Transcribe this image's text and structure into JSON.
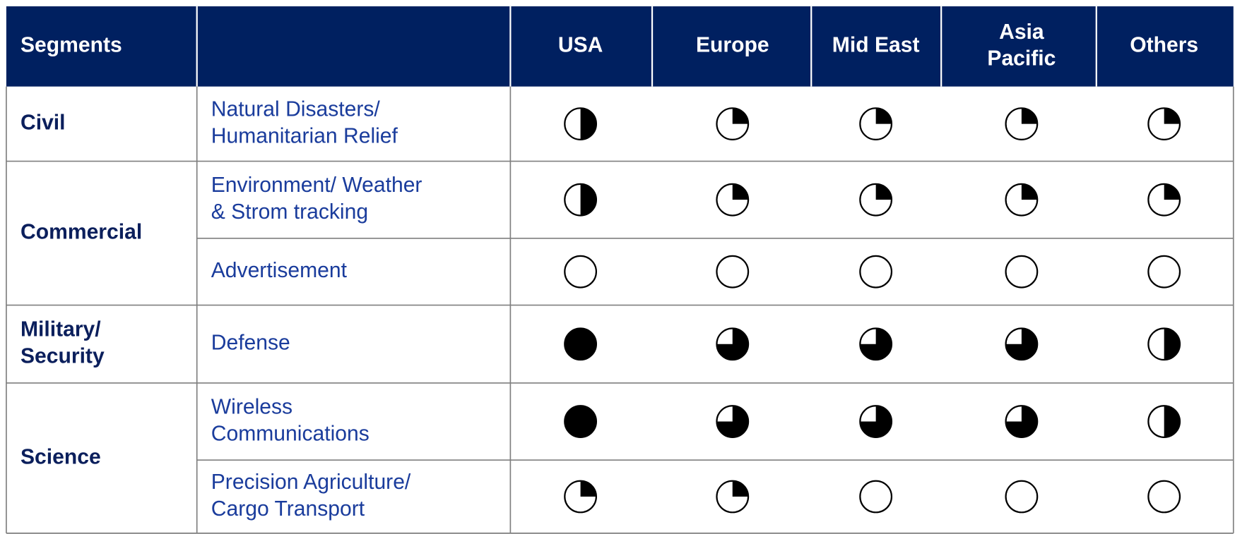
{
  "header": {
    "segments_label": "Segments",
    "regions": [
      [
        "USA"
      ],
      [
        "Europe"
      ],
      [
        "Mid East"
      ],
      [
        "Asia",
        "Pacific"
      ],
      [
        "Others"
      ]
    ]
  },
  "groups": [
    {
      "segment": [
        "Civil"
      ],
      "applications": [
        {
          "label": [
            "Natural Disasters/",
            "Humanitarian Relief"
          ],
          "ratings": [
            0.5,
            0.25,
            0.25,
            0.25,
            0.25
          ]
        }
      ]
    },
    {
      "segment": [
        "Commercial"
      ],
      "applications": [
        {
          "label": [
            "Environment/ Weather",
            "& Strom tracking"
          ],
          "ratings": [
            0.5,
            0.25,
            0.25,
            0.25,
            0.25
          ]
        },
        {
          "label": [
            "Advertisement"
          ],
          "ratings": [
            0,
            0,
            0,
            0,
            0
          ]
        }
      ]
    },
    {
      "segment": [
        "Military/",
        "Security"
      ],
      "applications": [
        {
          "label": [
            "Defense"
          ],
          "ratings": [
            1,
            0.75,
            0.75,
            0.75,
            0.5
          ]
        }
      ]
    },
    {
      "segment": [
        "Science"
      ],
      "applications": [
        {
          "label": [
            "Wireless",
            "Communications"
          ],
          "ratings": [
            1,
            0.75,
            0.75,
            0.75,
            0.5
          ]
        },
        {
          "label": [
            "Precision Agriculture/",
            "Cargo Transport"
          ],
          "ratings": [
            0.25,
            0.25,
            0,
            0,
            0
          ]
        }
      ]
    }
  ]
}
